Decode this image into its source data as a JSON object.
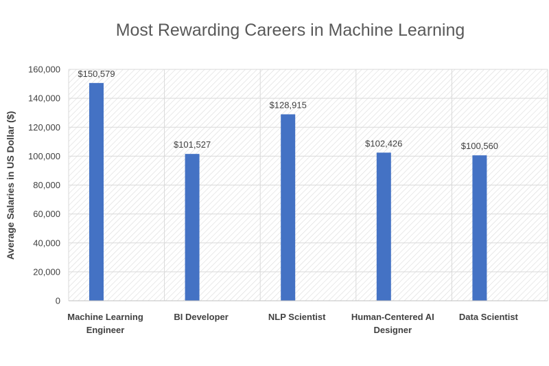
{
  "chart_data": {
    "type": "bar",
    "title": "Most Rewarding Careers in Machine Learning",
    "xlabel": "",
    "ylabel": "Average Salaries in US Dollar ($)",
    "categories": [
      [
        "Machine Learning",
        "Engineer"
      ],
      [
        "BI Developer"
      ],
      [
        "NLP Scientist"
      ],
      [
        "Human-Centered AI",
        "Designer"
      ],
      [
        "Data Scientist"
      ]
    ],
    "values": [
      150579,
      101527,
      128915,
      102426,
      100560
    ],
    "data_labels": [
      "$150,579",
      "$101,527",
      "$128,915",
      "$102,426",
      "$100,560"
    ],
    "ylim": [
      0,
      160000
    ],
    "yticks": [
      0,
      20000,
      40000,
      60000,
      80000,
      100000,
      120000,
      140000,
      160000
    ],
    "ytick_labels": [
      "0",
      "20,000",
      "40,000",
      "60,000",
      "80,000",
      "100,000",
      "120,000",
      "140,000",
      "160,000"
    ],
    "grid": true,
    "legend": "none",
    "colors": {
      "bar": "#4472C4",
      "grid": "#D9D9D9",
      "hatch": "#DADADA",
      "text": "#404040",
      "title": "#595959"
    }
  }
}
